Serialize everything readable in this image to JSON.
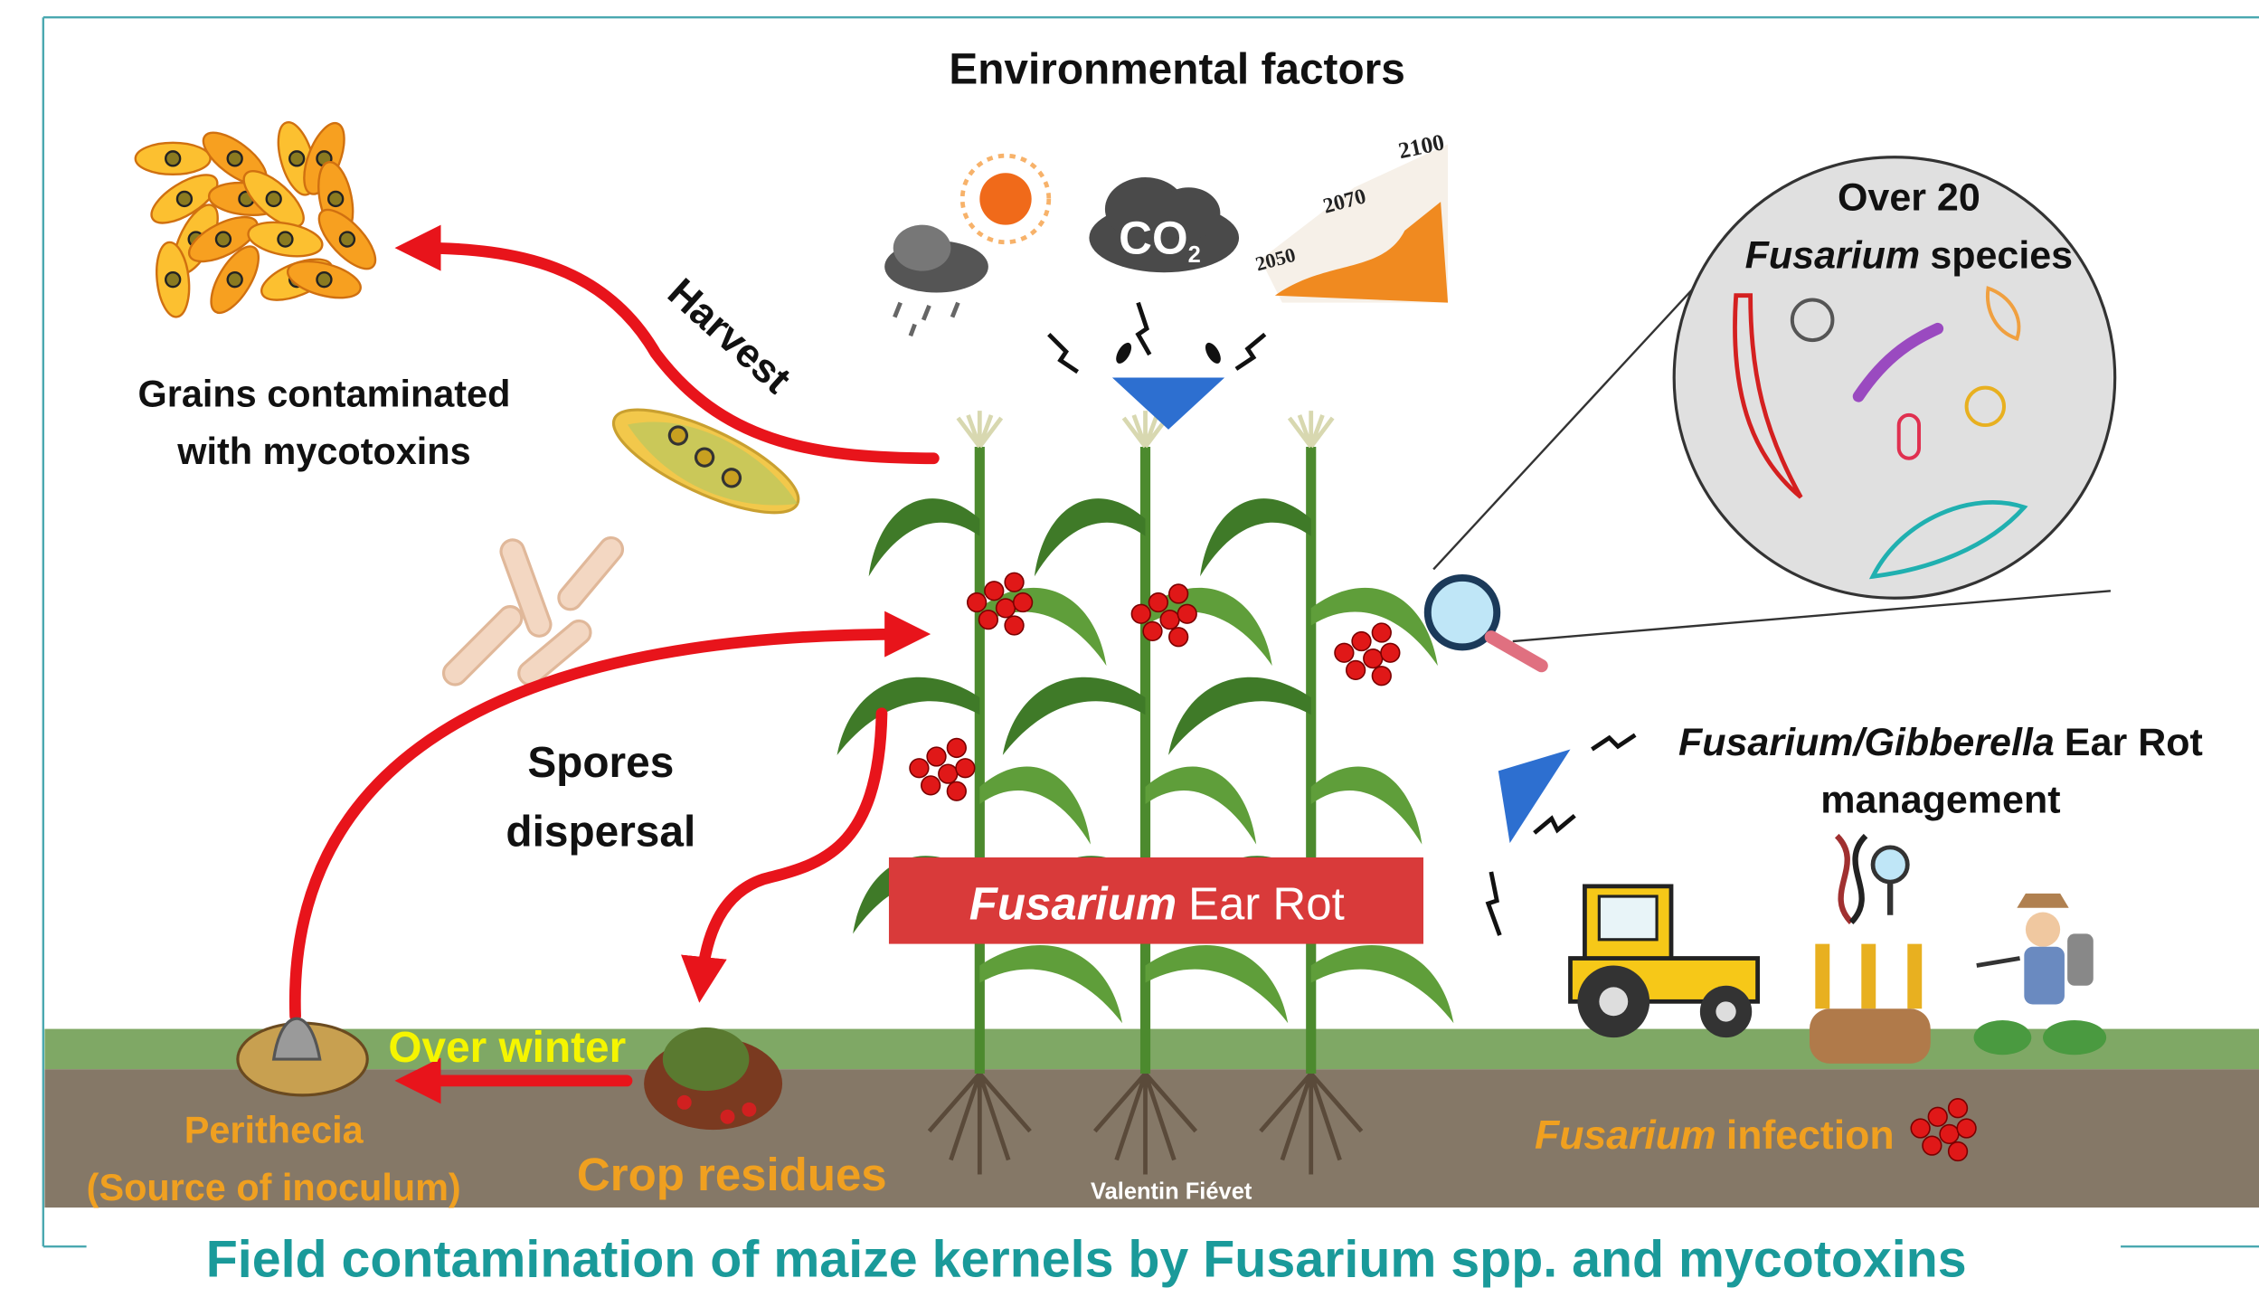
{
  "header": {
    "title": "Environmental factors",
    "co2": "CO",
    "co2_sub": "2",
    "years": [
      "2100",
      "2070",
      "2050"
    ]
  },
  "labels": {
    "grains": [
      "Grains contaminated",
      "with mycotoxins"
    ],
    "harvest": "Harvest",
    "species": [
      "Over 20",
      "Fusarium",
      "species"
    ],
    "spores": [
      "Spores",
      "dispersal"
    ],
    "ear_rot": [
      "Fusarium",
      "Ear Rot"
    ],
    "management": [
      "Fusarium/Gibberella",
      "Ear Rot",
      "management"
    ],
    "over_winter": "Over winter",
    "perithecia": [
      "Perithecia",
      "(Source of inoculum)"
    ],
    "crop_residues": "Crop residues",
    "infection": [
      "Fusarium",
      "infection"
    ],
    "credit": "Valentin Fiévet"
  },
  "footer": {
    "title": "Field contamination of maize kernels by Fusarium spp. and mycotoxins"
  }
}
